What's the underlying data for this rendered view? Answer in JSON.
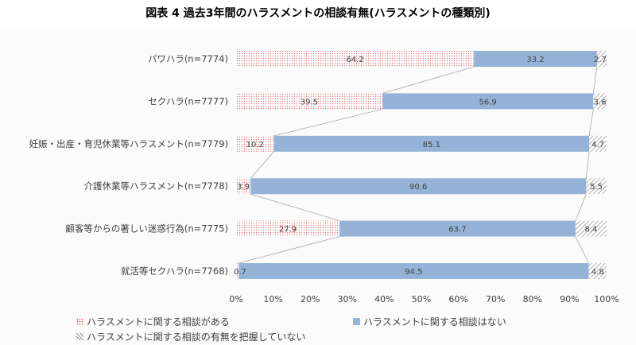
{
  "chart_data": {
    "type": "bar",
    "orientation": "horizontal-stacked",
    "title": "図表 4 過去3年間のハラスメントの相談有無(ハラスメントの種類別)",
    "categories": [
      "パワハラ(n=7774)",
      "セクハラ(n=7777)",
      "妊娠・出産・育児休業等ハラスメント(n=7779)",
      "介護休業等ハラスメント(n=7778)",
      "顧客等からの著しい迷惑行為(n=7775)",
      "就活等セクハラ(n=7768)"
    ],
    "series": [
      {
        "name": "ハラスメントに関する相談がある",
        "values": [
          64.2,
          39.5,
          10.2,
          3.9,
          27.9,
          0.7
        ],
        "color": "#e8787e"
      },
      {
        "name": "ハラスメントに関する相談はない",
        "values": [
          33.2,
          56.9,
          85.1,
          90.6,
          63.7,
          94.5
        ],
        "color": "#95b3d7"
      },
      {
        "name": "ハラスメントに関する相談の有無を把握していない",
        "values": [
          2.7,
          3.6,
          4.7,
          5.5,
          8.4,
          4.8
        ],
        "color": "#8c8c8c"
      }
    ],
    "xlim": [
      0,
      100
    ],
    "xticks": [
      "0%",
      "10%",
      "20%",
      "30%",
      "40%",
      "50%",
      "60%",
      "70%",
      "80%",
      "90%",
      "100%"
    ],
    "legend_position": "bottom-left",
    "grid": false,
    "series_lines": true
  }
}
